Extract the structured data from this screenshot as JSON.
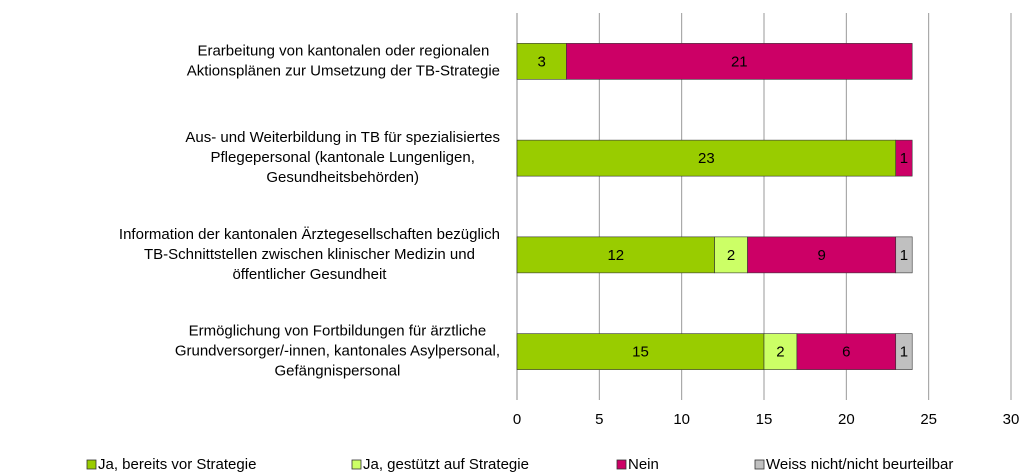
{
  "chart_data": {
    "type": "stacked-barh",
    "categories": [
      [
        "Erarbeitung von kantonalen oder regionalen",
        "Aktionsplänen zur Umsetzung der TB-Strategie"
      ],
      [
        "Aus- und Weiterbildung in TB für spezialisiertes",
        "Pflegepersonal (kantonale Lungenligen,",
        "Gesundheitsbehörden)"
      ],
      [
        "Information der kantonalen Ärztegesellschaften bezüglich",
        "TB-Schnittstellen zwischen klinischer Medizin und",
        "öffentlicher Gesundheit"
      ],
      [
        "Ermöglichung von Fortbildungen für ärztliche",
        "Grundversorger/-innen, kantonales Asylpersonal,",
        "Gefängnispersonal"
      ]
    ],
    "series": [
      {
        "name": "Ja, bereits vor Strategie",
        "color": "#99cc00",
        "values": [
          3,
          23,
          12,
          15
        ]
      },
      {
        "name": "Ja, gestützt auf Strategie",
        "color": "#ccff66",
        "values": [
          null,
          null,
          2,
          2
        ]
      },
      {
        "name": "Nein",
        "color": "#cc0066",
        "values": [
          21,
          1,
          9,
          6
        ]
      },
      {
        "name": "Weiss nicht/nicht beurteilbar",
        "color": "#c0c0c0",
        "values": [
          null,
          null,
          1,
          1
        ]
      }
    ],
    "xlim": [
      0,
      30
    ],
    "xticks": [
      0,
      5,
      10,
      15,
      20,
      25,
      30
    ],
    "grid": true,
    "legend": "bottom"
  }
}
